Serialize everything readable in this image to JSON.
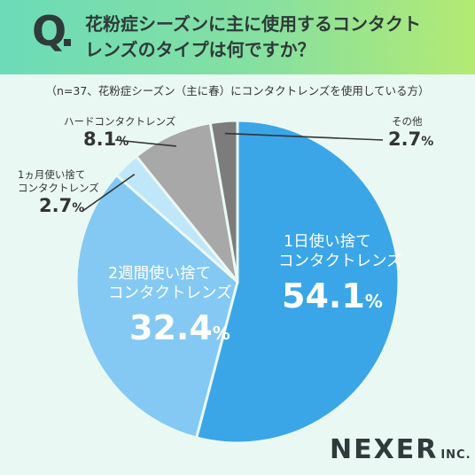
{
  "header": {
    "q_letter": "Q",
    "question_line1": "花粉症シーズンに主に使用するコンタクト",
    "question_line2": "レンズのタイプは何ですか？"
  },
  "note": "（n=37、花粉症シーズン（主に春）にコンタクトレンズを使用している方）",
  "chart_data": {
    "type": "pie",
    "title": "花粉症シーズンに主に使用するコンタクトレンズのタイプは何ですか？",
    "n": 37,
    "unit": "%",
    "slices": [
      {
        "label_lines": [
          "1日使い捨て",
          "コンタクトレンズ"
        ],
        "value": 54.1,
        "color": "#3aa6e8"
      },
      {
        "label_lines": [
          "2週間使い捨て",
          "コンタクトレンズ"
        ],
        "value": 32.4,
        "color": "#84c9f3"
      },
      {
        "label_lines": [
          "1ヵ月使い捨て",
          "コンタクトレンズ"
        ],
        "value": 2.7,
        "color": "#c0e6fa"
      },
      {
        "label_lines": [
          "ハードコンタクトレンズ"
        ],
        "value": 8.1,
        "color": "#a8a8a8"
      },
      {
        "label_lines": [
          "その他"
        ],
        "value": 2.7,
        "color": "#7c7c7c"
      }
    ]
  },
  "labels": {
    "s0_line1": "1日使い捨て",
    "s0_line2": "コンタクトレンズ",
    "s0_pct": "54.1",
    "s0_unit": "%",
    "s1_line1": "2週間使い捨て",
    "s1_line2": "コンタクトレンズ",
    "s1_pct": "32.4",
    "s1_unit": "%",
    "s2_line1": "1ヵ月使い捨て",
    "s2_line2": "コンタクトレンズ",
    "s2_pct": "2.7",
    "s2_unit": "%",
    "s3_line1": "ハードコンタクトレンズ",
    "s3_pct": "8.1",
    "s3_unit": "%",
    "s4_line1": "その他",
    "s4_pct": "2.7",
    "s4_unit": "%"
  },
  "logo": {
    "word": "NEXER",
    "suffix": "INC."
  }
}
